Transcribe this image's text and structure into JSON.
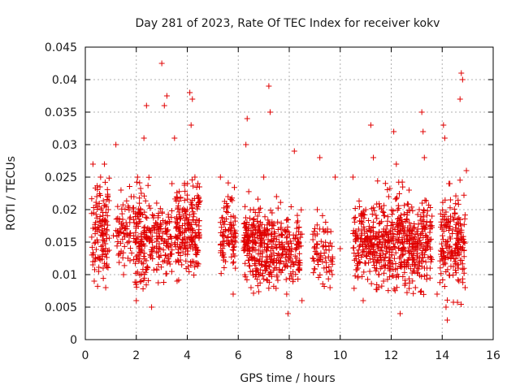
{
  "chart_data": {
    "type": "scatter",
    "title": "Day 281 of 2023, Rate Of TEC Index for receiver kokv",
    "xlabel": "GPS time / hours",
    "ylabel": "ROTI / TECUs",
    "xlim": [
      0,
      16
    ],
    "ylim": [
      0,
      0.045
    ],
    "x_ticks": [
      0,
      2,
      4,
      6,
      8,
      10,
      12,
      14,
      16
    ],
    "y_ticks": [
      0,
      0.005,
      0.01,
      0.015,
      0.02,
      0.025,
      0.03,
      0.035,
      0.04,
      0.045
    ],
    "x_tick_labels": [
      "0",
      "2",
      "4",
      "6",
      "8",
      "10",
      "12",
      "14",
      "16"
    ],
    "y_tick_labels": [
      "0",
      "0.005",
      "0.01",
      "0.015",
      "0.02",
      "0.025",
      "0.03",
      "0.035",
      "0.04",
      "0.045"
    ],
    "grid": true,
    "marker": "+",
    "color": "#e00000",
    "series": [
      {
        "name": "ROTI",
        "points": [
          [
            0.3,
            0.027
          ],
          [
            0.3,
            0.012
          ],
          [
            0.35,
            0.009
          ],
          [
            0.4,
            0.018
          ],
          [
            0.45,
            0.022
          ],
          [
            0.5,
            0.015
          ],
          [
            0.6,
            0.025
          ],
          [
            0.7,
            0.011
          ],
          [
            0.75,
            0.027
          ],
          [
            0.8,
            0.008
          ],
          [
            0.9,
            0.02
          ],
          [
            1.1,
            0.016
          ],
          [
            1.2,
            0.03
          ],
          [
            1.3,
            0.013
          ],
          [
            1.4,
            0.023
          ],
          [
            1.5,
            0.01
          ],
          [
            1.6,
            0.018
          ],
          [
            1.8,
            0.022
          ],
          [
            2.0,
            0.006
          ],
          [
            2.05,
            0.025
          ],
          [
            2.1,
            0.014
          ],
          [
            2.2,
            0.009
          ],
          [
            2.3,
            0.031
          ],
          [
            2.4,
            0.036
          ],
          [
            2.5,
            0.017
          ],
          [
            2.6,
            0.005
          ],
          [
            2.8,
            0.021
          ],
          [
            3.0,
            0.0425
          ],
          [
            3.05,
            0.012
          ],
          [
            3.1,
            0.036
          ],
          [
            3.2,
            0.0375
          ],
          [
            3.3,
            0.018
          ],
          [
            3.4,
            0.024
          ],
          [
            3.5,
            0.031
          ],
          [
            3.6,
            0.009
          ],
          [
            3.8,
            0.015
          ],
          [
            4.0,
            0.02
          ],
          [
            4.1,
            0.038
          ],
          [
            4.15,
            0.033
          ],
          [
            4.2,
            0.037
          ],
          [
            4.25,
            0.012
          ],
          [
            4.3,
            0.025
          ],
          [
            4.35,
            0.016
          ],
          [
            5.3,
            0.025
          ],
          [
            5.4,
            0.018
          ],
          [
            5.5,
            0.012
          ],
          [
            5.6,
            0.022
          ],
          [
            5.8,
            0.007
          ],
          [
            5.9,
            0.015
          ],
          [
            6.3,
            0.03
          ],
          [
            6.35,
            0.034
          ],
          [
            6.4,
            0.014
          ],
          [
            6.5,
            0.008
          ],
          [
            6.6,
            0.02
          ],
          [
            6.8,
            0.012
          ],
          [
            7.0,
            0.025
          ],
          [
            7.1,
            0.016
          ],
          [
            7.2,
            0.039
          ],
          [
            7.25,
            0.035
          ],
          [
            7.3,
            0.01
          ],
          [
            7.5,
            0.022
          ],
          [
            7.7,
            0.013
          ],
          [
            7.9,
            0.007
          ],
          [
            7.95,
            0.004
          ],
          [
            8.2,
            0.029
          ],
          [
            8.3,
            0.018
          ],
          [
            8.4,
            0.011
          ],
          [
            8.5,
            0.006
          ],
          [
            9.1,
            0.02
          ],
          [
            9.2,
            0.028
          ],
          [
            9.3,
            0.012
          ],
          [
            9.5,
            0.017
          ],
          [
            9.6,
            0.008
          ],
          [
            9.8,
            0.025
          ],
          [
            10.0,
            0.014
          ],
          [
            10.5,
            0.025
          ],
          [
            10.6,
            0.016
          ],
          [
            10.7,
            0.011
          ],
          [
            10.9,
            0.006
          ],
          [
            11.0,
            0.02
          ],
          [
            11.2,
            0.033
          ],
          [
            11.3,
            0.028
          ],
          [
            11.5,
            0.014
          ],
          [
            11.7,
            0.009
          ],
          [
            11.9,
            0.022
          ],
          [
            12.1,
            0.032
          ],
          [
            12.2,
            0.027
          ],
          [
            12.3,
            0.018
          ],
          [
            12.35,
            0.004
          ],
          [
            12.5,
            0.012
          ],
          [
            12.7,
            0.023
          ],
          [
            12.9,
            0.015
          ],
          [
            13.1,
            0.02
          ],
          [
            13.2,
            0.035
          ],
          [
            13.25,
            0.032
          ],
          [
            13.3,
            0.028
          ],
          [
            13.4,
            0.011
          ],
          [
            13.6,
            0.019
          ],
          [
            13.8,
            0.007
          ],
          [
            14.0,
            0.017
          ],
          [
            14.05,
            0.033
          ],
          [
            14.1,
            0.031
          ],
          [
            14.15,
            0.005
          ],
          [
            14.2,
            0.003
          ],
          [
            14.3,
            0.024
          ],
          [
            14.5,
            0.012
          ],
          [
            14.6,
            0.018
          ],
          [
            14.7,
            0.037
          ],
          [
            14.75,
            0.041
          ],
          [
            14.8,
            0.04
          ],
          [
            14.9,
            0.008
          ],
          [
            14.95,
            0.026
          ]
        ],
        "dense_clusters": [
          {
            "x_range": [
              0.25,
              0.95
            ],
            "y_range": [
              0.007,
              0.027
            ],
            "count": 120
          },
          {
            "x_range": [
              1.2,
              1.9
            ],
            "y_range": [
              0.008,
              0.025
            ],
            "count": 70
          },
          {
            "x_range": [
              1.9,
              2.5
            ],
            "y_range": [
              0.005,
              0.026
            ],
            "count": 120
          },
          {
            "x_range": [
              2.5,
              3.4
            ],
            "y_range": [
              0.007,
              0.024
            ],
            "count": 120
          },
          {
            "x_range": [
              3.5,
              4.5
            ],
            "y_range": [
              0.008,
              0.026
            ],
            "count": 200
          },
          {
            "x_range": [
              5.3,
              5.9
            ],
            "y_range": [
              0.008,
              0.025
            ],
            "count": 90
          },
          {
            "x_range": [
              6.2,
              7.0
            ],
            "y_range": [
              0.006,
              0.023
            ],
            "count": 170
          },
          {
            "x_range": [
              7.0,
              8.5
            ],
            "y_range": [
              0.006,
              0.022
            ],
            "count": 230
          },
          {
            "x_range": [
              8.9,
              9.7
            ],
            "y_range": [
              0.006,
              0.021
            ],
            "count": 70
          },
          {
            "x_range": [
              10.5,
              11.4
            ],
            "y_range": [
              0.007,
              0.023
            ],
            "count": 150
          },
          {
            "x_range": [
              11.4,
              12.6
            ],
            "y_range": [
              0.005,
              0.025
            ],
            "count": 240
          },
          {
            "x_range": [
              12.6,
              13.6
            ],
            "y_range": [
              0.006,
              0.024
            ],
            "count": 190
          },
          {
            "x_range": [
              13.9,
              14.9
            ],
            "y_range": [
              0.004,
              0.025
            ],
            "count": 180
          }
        ]
      }
    ]
  }
}
